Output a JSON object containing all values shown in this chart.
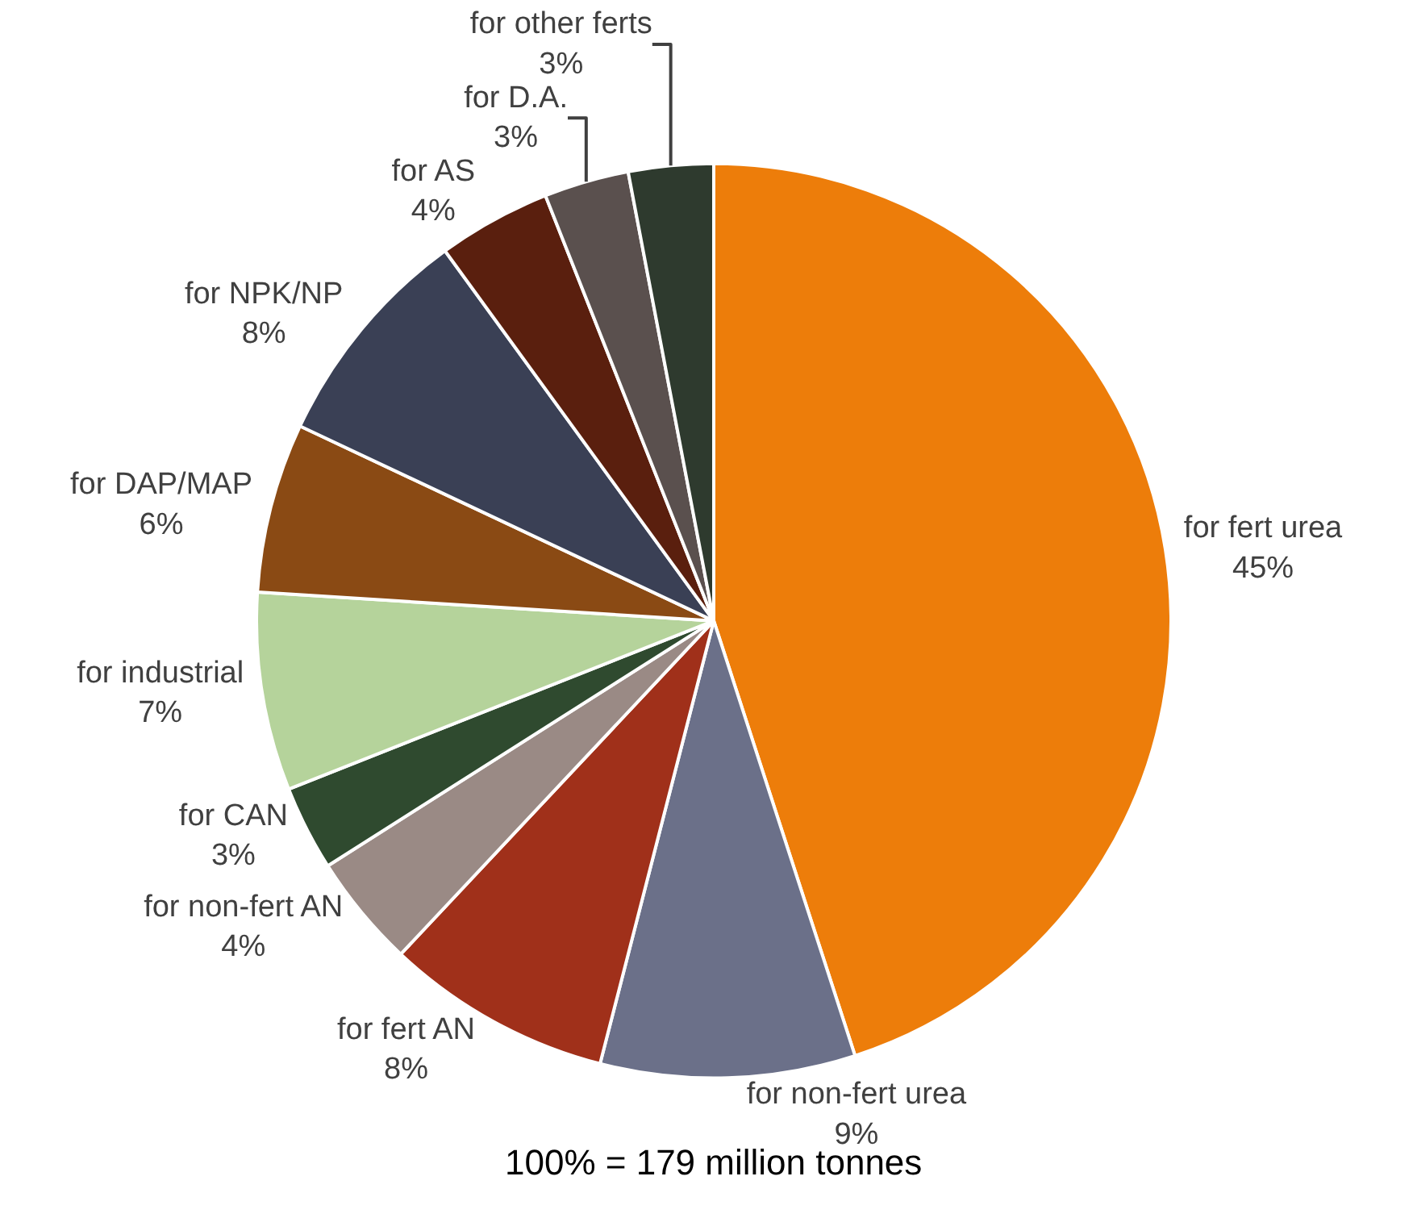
{
  "chart_data": {
    "type": "pie",
    "categories": [
      "for fert urea",
      "for non-fert urea",
      "for fert AN",
      "for non-fert AN",
      "for CAN",
      "for industrial",
      "for DAP/MAP",
      "for NPK/NP",
      "for AS",
      "for D.A.",
      "for other ferts"
    ],
    "values": [
      45,
      9,
      8,
      4,
      3,
      7,
      6,
      8,
      4,
      3,
      3
    ],
    "value_labels": [
      "45%",
      "9%",
      "8%",
      "4%",
      "3%",
      "7%",
      "6%",
      "8%",
      "4%",
      "3%",
      "3%"
    ],
    "colors": [
      "#ed7d0a",
      "#6b7089",
      "#a0301a",
      "#9a8a85",
      "#2f4a2f",
      "#b5d39b",
      "#8a4a14",
      "#3a4055",
      "#5a1f0e",
      "#5a504e",
      "#2e3a2e"
    ],
    "legend": false,
    "annotations": [
      "100% = 179 million tonnes"
    ]
  }
}
